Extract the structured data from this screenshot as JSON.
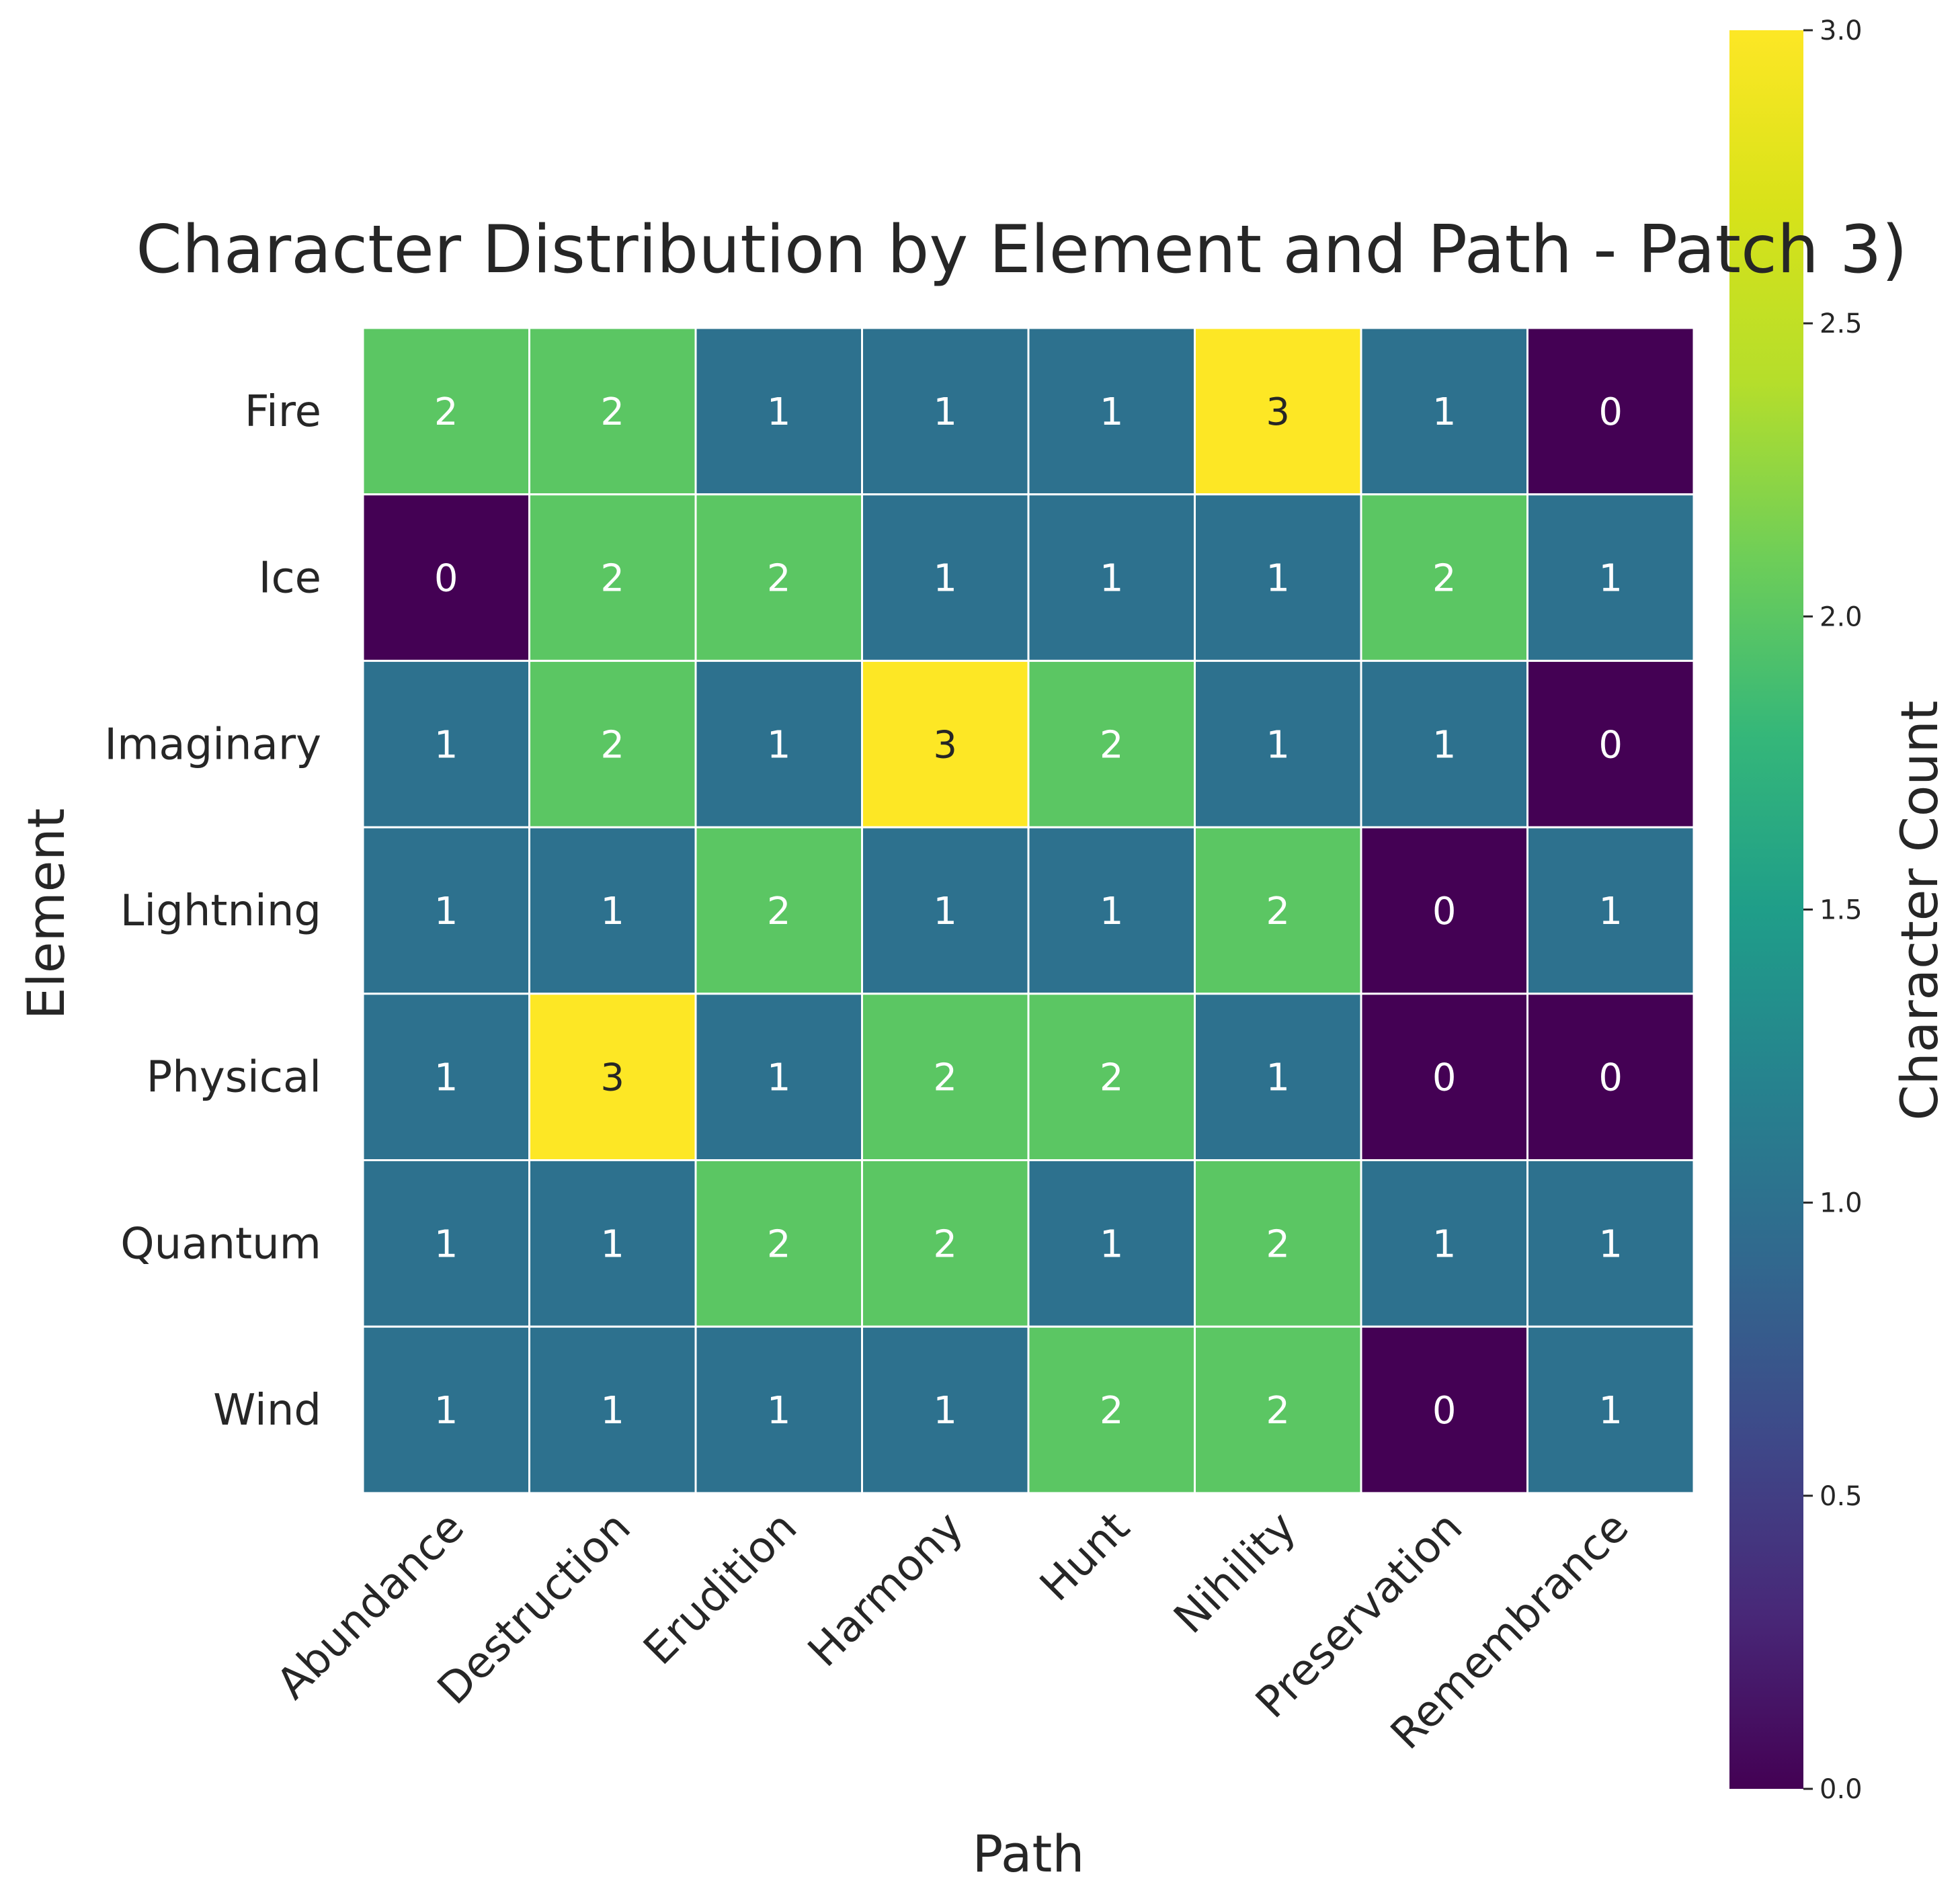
{
  "chart_data": {
    "type": "heatmap",
    "title": "Character Distribution by Element and Path - Patch 3)",
    "xlabel": "Path",
    "ylabel": "Element",
    "x_categories": [
      "Abundance",
      "Destruction",
      "Erudition",
      "Harmony",
      "Hunt",
      "Nihility",
      "Preservation",
      "Remembrance"
    ],
    "y_categories": [
      "Fire",
      "Ice",
      "Imaginary",
      "Lightning",
      "Physical",
      "Quantum",
      "Wind"
    ],
    "values": [
      [
        2,
        2,
        1,
        1,
        1,
        3,
        1,
        0
      ],
      [
        0,
        2,
        2,
        1,
        1,
        1,
        2,
        1
      ],
      [
        1,
        2,
        1,
        3,
        2,
        1,
        1,
        0
      ],
      [
        1,
        1,
        2,
        1,
        1,
        2,
        0,
        1
      ],
      [
        1,
        3,
        1,
        2,
        2,
        1,
        0,
        0
      ],
      [
        1,
        1,
        2,
        2,
        1,
        2,
        1,
        1
      ],
      [
        1,
        1,
        1,
        1,
        2,
        2,
        0,
        1
      ]
    ],
    "colorbar": {
      "label": "Character Count",
      "range": [
        0,
        3
      ],
      "ticks": [
        "0.0",
        "0.5",
        "1.0",
        "1.5",
        "2.0",
        "2.5",
        "3.0"
      ],
      "colormap": "viridis"
    },
    "cell_annotations": true,
    "grid": false
  }
}
